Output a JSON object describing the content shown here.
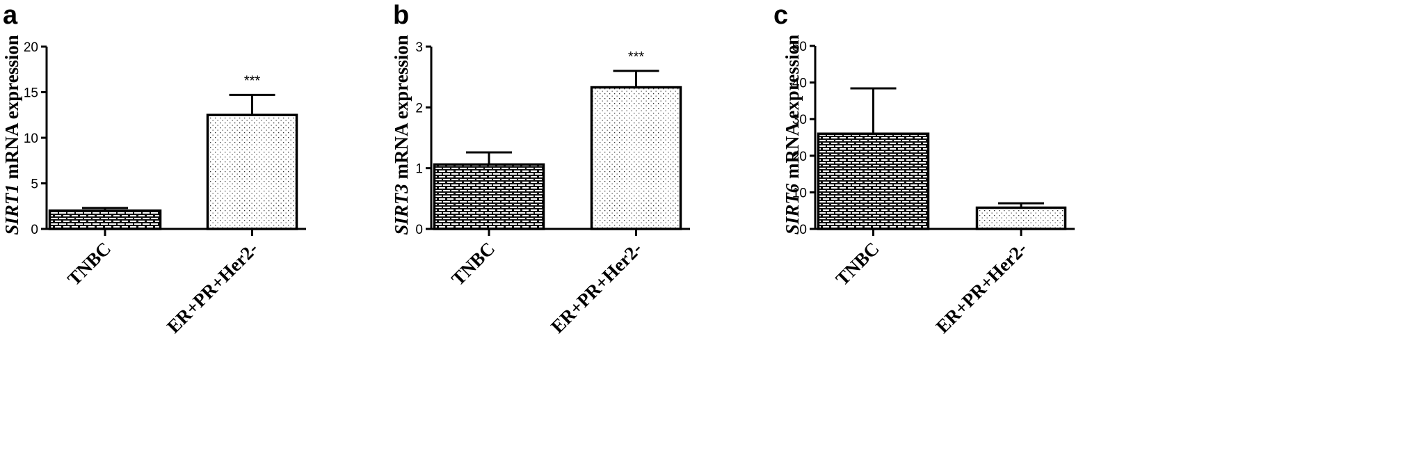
{
  "chart_data": [
    {
      "type": "bar",
      "panel": "a",
      "ylabel_gene": "SIRT1",
      "ylabel_rest": " mRNA expression",
      "categories": [
        "TNBC",
        "ER+PR+Her2-"
      ],
      "series": [
        {
          "values": [
            2.0,
            12.5
          ],
          "errors": [
            0.3,
            2.2
          ]
        }
      ],
      "annotations": [
        "",
        "***"
      ],
      "ylim": [
        0,
        20
      ],
      "yticks": [
        0,
        5,
        10,
        15,
        20
      ],
      "patterns": [
        "brick",
        "dots"
      ],
      "grid": false
    },
    {
      "type": "bar",
      "panel": "b",
      "ylabel_gene": "SIRT3",
      "ylabel_rest": " mRNA expression",
      "categories": [
        "TNBC",
        "ER+PR+Her2-"
      ],
      "series": [
        {
          "values": [
            1.06,
            2.33
          ],
          "errors": [
            0.2,
            0.27
          ]
        }
      ],
      "annotations": [
        "",
        "***"
      ],
      "ylim": [
        0,
        3
      ],
      "yticks": [
        0,
        1,
        2,
        3
      ],
      "patterns": [
        "brick",
        "dots"
      ],
      "grid": false
    },
    {
      "type": "bar",
      "panel": "c",
      "ylabel_gene": "SIRT6",
      "ylabel_rest": " mRNA expression",
      "categories": [
        "TNBC",
        "ER+PR+Her2-"
      ],
      "series": [
        {
          "values": [
            26.0,
            5.8
          ],
          "errors": [
            12.4,
            1.2
          ]
        }
      ],
      "annotations": [
        "",
        ""
      ],
      "ylim": [
        0,
        50
      ],
      "yticks": [
        0,
        10,
        20,
        30,
        40,
        50
      ],
      "patterns": [
        "brick",
        "dots"
      ],
      "grid": false
    }
  ]
}
